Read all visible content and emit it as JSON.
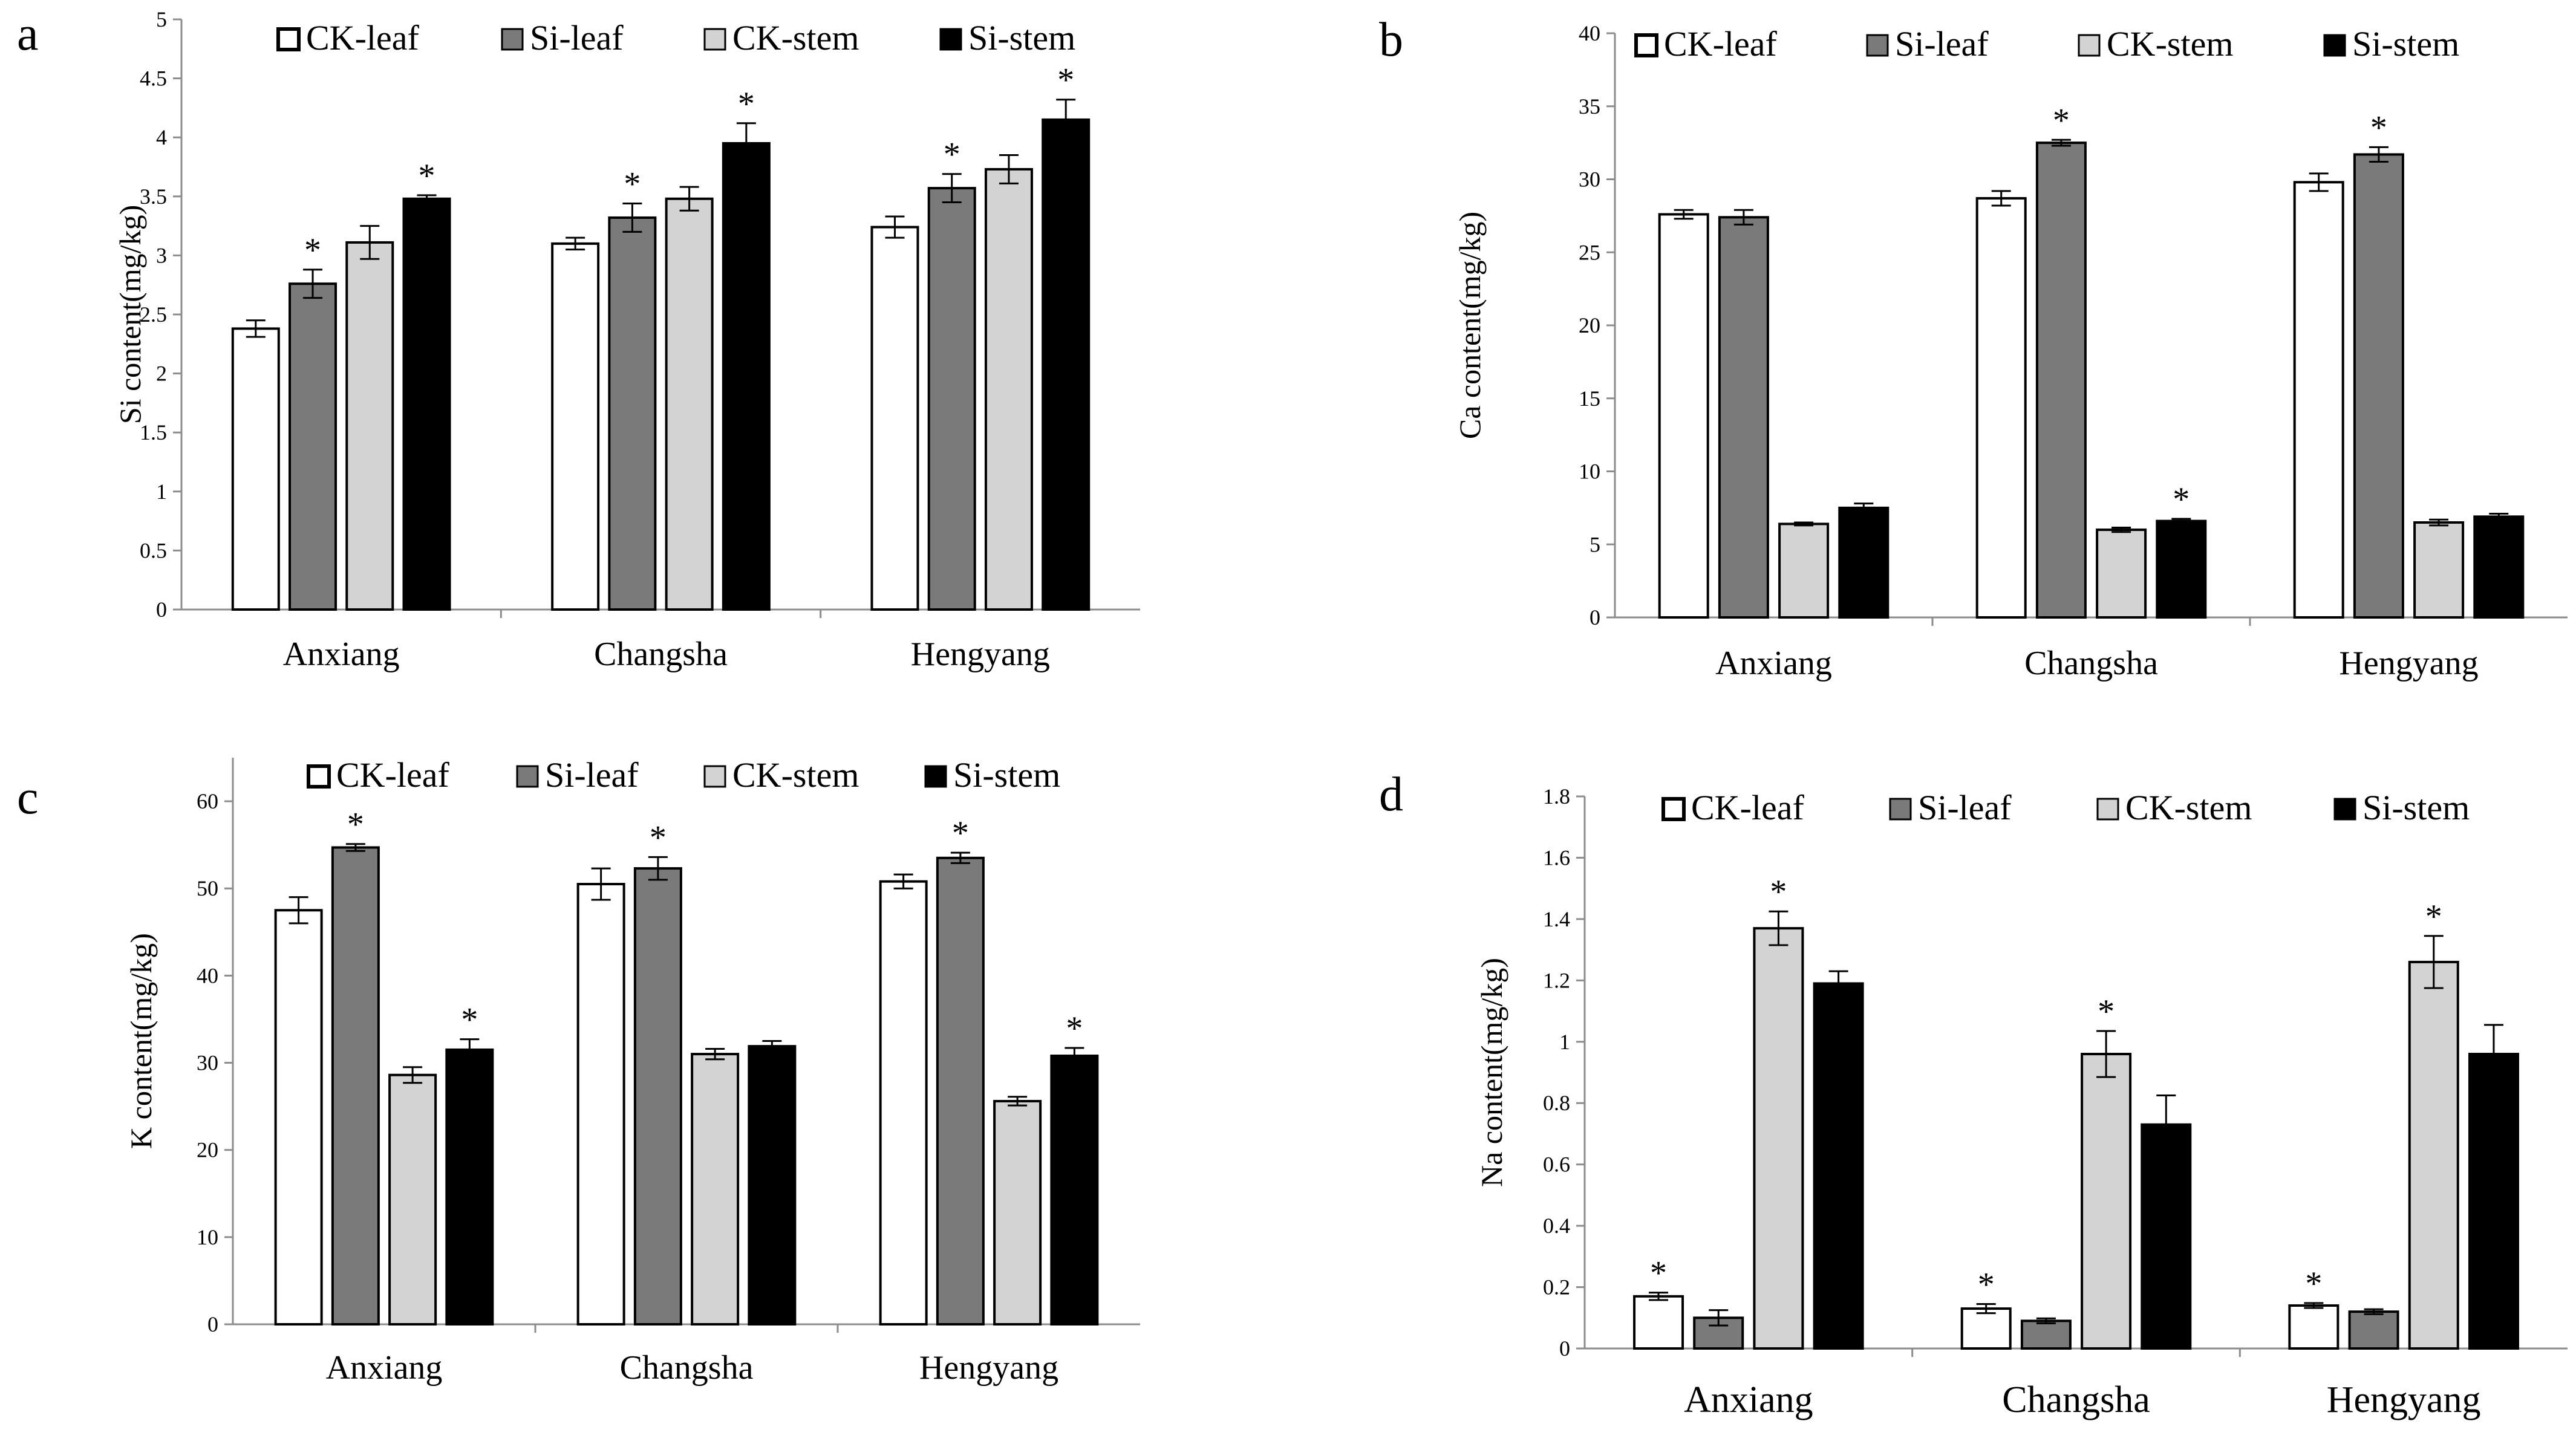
{
  "legend_labels": [
    "CK-leaf",
    "Si-leaf",
    "CK-stem",
    "Si-stem"
  ],
  "colors": {
    "CK-leaf": "#ffffff",
    "Si-leaf": "#7a7a7a",
    "CK-stem": "#d3d3d3",
    "Si-stem": "#000000",
    "axis": "#8c8c8c",
    "outline": "#000000"
  },
  "chart_data": [
    {
      "panel": "a",
      "type": "bar",
      "ylabel": "Si content(mg/kg)",
      "ylim": [
        0,
        5
      ],
      "yticks": [
        "0",
        "0.5",
        "1",
        "1.5",
        "2",
        "2.5",
        "3",
        "3.5",
        "4",
        "4.5",
        "5"
      ],
      "categories": [
        "Anxiang",
        "Changsha",
        "Hengyang"
      ],
      "series": [
        {
          "name": "CK-leaf",
          "values": [
            2.38,
            3.1,
            3.24
          ],
          "errors": [
            0.07,
            0.05,
            0.09
          ],
          "sig": [
            false,
            false,
            false
          ]
        },
        {
          "name": "Si-leaf",
          "values": [
            2.76,
            3.32,
            3.57
          ],
          "errors": [
            0.12,
            0.12,
            0.12
          ],
          "sig": [
            true,
            true,
            true
          ]
        },
        {
          "name": "CK-stem",
          "values": [
            3.11,
            3.48,
            3.73
          ],
          "errors": [
            0.14,
            0.1,
            0.12
          ],
          "sig": [
            false,
            false,
            false
          ]
        },
        {
          "name": "Si-stem",
          "values": [
            3.48,
            3.95,
            4.15
          ],
          "errors": [
            0.03,
            0.17,
            0.17
          ],
          "sig": [
            true,
            true,
            true
          ]
        }
      ]
    },
    {
      "panel": "b",
      "type": "bar",
      "ylabel": "Ca content(mg/kg)",
      "ylim": [
        0,
        40
      ],
      "yticks": [
        "0",
        "5",
        "10",
        "15",
        "20",
        "25",
        "30",
        "35",
        "40"
      ],
      "categories": [
        "Anxiang",
        "Changsha",
        "Hengyang"
      ],
      "series": [
        {
          "name": "CK-leaf",
          "values": [
            27.6,
            28.7,
            29.8
          ],
          "errors": [
            0.3,
            0.5,
            0.6
          ],
          "sig": [
            false,
            false,
            false
          ]
        },
        {
          "name": "Si-leaf",
          "values": [
            27.4,
            32.5,
            31.7
          ],
          "errors": [
            0.5,
            0.2,
            0.5
          ],
          "sig": [
            false,
            true,
            true
          ]
        },
        {
          "name": "CK-stem",
          "values": [
            6.4,
            6.0,
            6.5
          ],
          "errors": [
            0.1,
            0.15,
            0.2
          ],
          "sig": [
            false,
            false,
            false
          ]
        },
        {
          "name": "Si-stem",
          "values": [
            7.5,
            6.6,
            6.9
          ],
          "errors": [
            0.3,
            0.15,
            0.2
          ],
          "sig": [
            false,
            true,
            false
          ]
        }
      ]
    },
    {
      "panel": "c",
      "type": "bar",
      "ylabel": "K content(mg/kg)",
      "ylim": [
        0,
        65
      ],
      "yticks": [
        "0",
        "10",
        "20",
        "30",
        "40",
        "50",
        "60"
      ],
      "categories": [
        "Anxiang",
        "Changsha",
        "Hengyang"
      ],
      "series": [
        {
          "name": "CK-leaf",
          "values": [
            47.5,
            50.5,
            50.8
          ],
          "errors": [
            1.5,
            1.8,
            0.8
          ],
          "sig": [
            false,
            false,
            false
          ]
        },
        {
          "name": "Si-leaf",
          "values": [
            54.7,
            52.3,
            53.5
          ],
          "errors": [
            0.4,
            1.3,
            0.6
          ],
          "sig": [
            true,
            true,
            true
          ]
        },
        {
          "name": "CK-stem",
          "values": [
            28.6,
            31.0,
            25.6
          ],
          "errors": [
            0.9,
            0.6,
            0.5
          ],
          "sig": [
            false,
            false,
            false
          ]
        },
        {
          "name": "Si-stem",
          "values": [
            31.5,
            31.9,
            30.8
          ],
          "errors": [
            1.2,
            0.6,
            0.9
          ],
          "sig": [
            true,
            false,
            true
          ]
        }
      ]
    },
    {
      "panel": "d",
      "type": "bar",
      "ylabel": "Na content(mg/kg)",
      "ylim": [
        0,
        1.8
      ],
      "yticks": [
        "0",
        "0.2",
        "0.4",
        "0.6",
        "0.8",
        "1",
        "1.2",
        "1.4",
        "1.6",
        "1.8"
      ],
      "categories": [
        "Anxiang",
        "Changsha",
        "Hengyang"
      ],
      "series": [
        {
          "name": "CK-leaf",
          "values": [
            0.17,
            0.13,
            0.14
          ],
          "errors": [
            0.012,
            0.015,
            0.008
          ],
          "sig": [
            true,
            true,
            true
          ]
        },
        {
          "name": "Si-leaf",
          "values": [
            0.1,
            0.09,
            0.12
          ],
          "errors": [
            0.025,
            0.008,
            0.008
          ],
          "sig": [
            false,
            false,
            false
          ]
        },
        {
          "name": "CK-stem",
          "values": [
            1.37,
            0.96,
            1.26
          ],
          "errors": [
            0.055,
            0.075,
            0.085
          ],
          "sig": [
            true,
            true,
            true
          ]
        },
        {
          "name": "Si-stem",
          "values": [
            1.19,
            0.73,
            0.96
          ],
          "errors": [
            0.04,
            0.095,
            0.095
          ],
          "sig": [
            false,
            false,
            false
          ]
        }
      ]
    }
  ]
}
